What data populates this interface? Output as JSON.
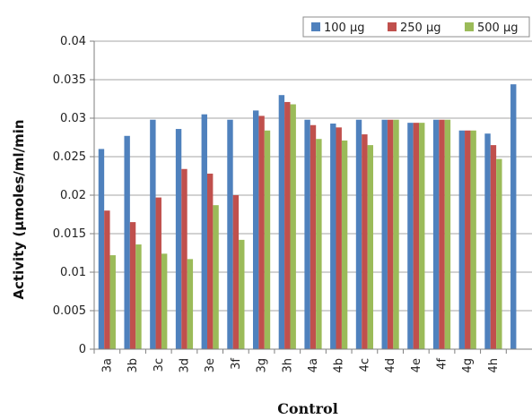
{
  "chart_data": {
    "type": "bar",
    "title": "",
    "xlabel": "Control",
    "ylabel": "Activity (µmoles/ml/min",
    "ylim": [
      0,
      0.04
    ],
    "yticks": [
      "0",
      "0.005",
      "0.01",
      "0.015",
      "0.02",
      "0.025",
      "0.03",
      "0.035",
      "0.04"
    ],
    "grid": "horizontal",
    "legend_position": "top-right",
    "categories": [
      "3a",
      "3b",
      "3c",
      "3d",
      "3e",
      "3f",
      "3g",
      "3h",
      "4a",
      "4b",
      "4c",
      "4d",
      "4e",
      "4f",
      "4g",
      "4h",
      ""
    ],
    "series": [
      {
        "name": "100 µg",
        "color": "#4f81bd",
        "values": [
          0.026,
          0.0277,
          0.0298,
          0.0286,
          0.0305,
          0.0298,
          0.031,
          0.033,
          0.0298,
          0.0293,
          0.0298,
          0.0298,
          0.0294,
          0.0298,
          0.0284,
          0.028,
          0.0344
        ]
      },
      {
        "name": "250 µg",
        "color": "#c0504d",
        "values": [
          0.018,
          0.0165,
          0.0197,
          0.0234,
          0.0228,
          0.02,
          0.0303,
          0.0321,
          0.0291,
          0.0288,
          0.0279,
          0.0298,
          0.0294,
          0.0298,
          0.0284,
          0.0265,
          null
        ]
      },
      {
        "name": "500 µg",
        "color": "#9bbb59",
        "values": [
          0.0122,
          0.0136,
          0.0124,
          0.0117,
          0.0187,
          0.0142,
          0.0284,
          0.0318,
          0.0273,
          0.0271,
          0.0265,
          0.0298,
          0.0294,
          0.0298,
          0.0284,
          0.0247,
          null
        ]
      }
    ]
  }
}
